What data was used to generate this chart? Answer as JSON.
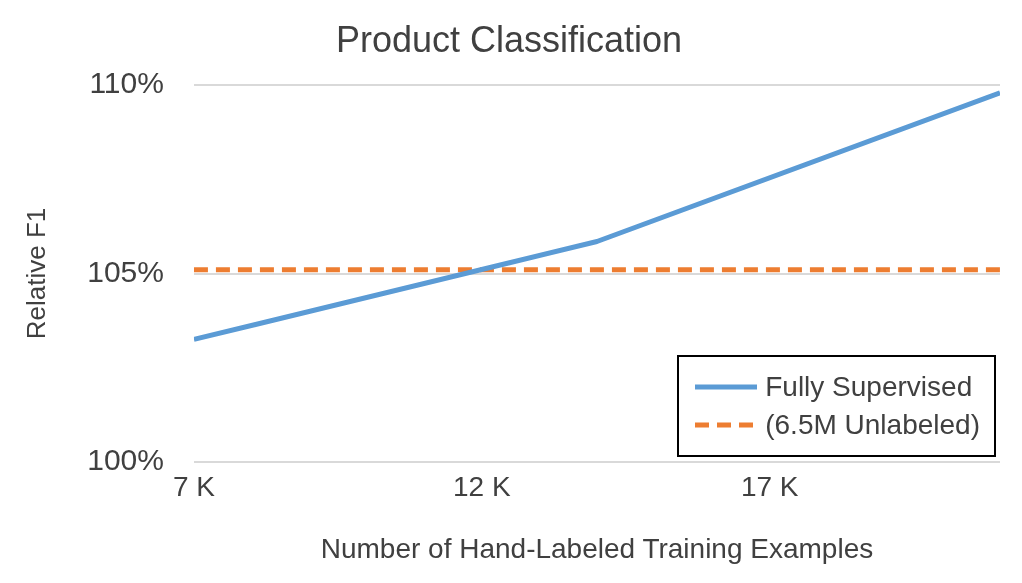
{
  "chart_data": {
    "type": "line",
    "title": "Product Classification",
    "xlabel": "Number of Hand-Labeled Training Examples",
    "ylabel": "Relative F1",
    "xlim": [
      7000,
      21000
    ],
    "xticks": [
      {
        "value": 7000,
        "label": "7 K"
      },
      {
        "value": 12000,
        "label": "12 K"
      },
      {
        "value": 17000,
        "label": "17 K"
      }
    ],
    "ylim": [
      100,
      110
    ],
    "yticks": [
      {
        "value": 100,
        "label": "100%"
      },
      {
        "value": 105,
        "label": "105%"
      },
      {
        "value": 110,
        "label": "110%"
      }
    ],
    "grid": "y",
    "legend": "bottom right",
    "marker": "none",
    "series": [
      {
        "name": "Fully Supervised",
        "color": "#5b9bd5",
        "x": [
          7000,
          14000,
          21000
        ],
        "values": [
          103.25,
          105.85,
          109.8
        ],
        "line_style": "solid"
      },
      {
        "name": "(6.5M Unlabeled)",
        "color": "#ed7d31",
        "x": [
          7000,
          21000
        ],
        "values": [
          105.1,
          105.1
        ],
        "line_style": "dashed"
      }
    ]
  }
}
